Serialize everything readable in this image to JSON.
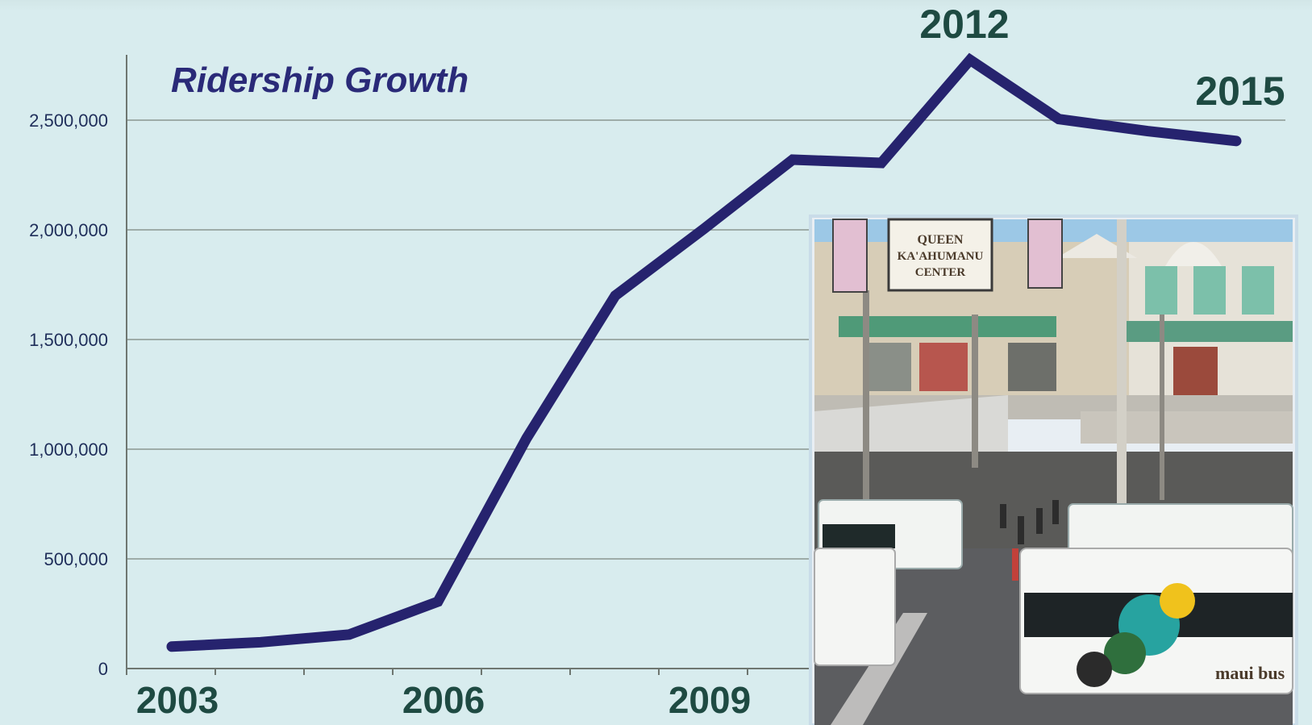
{
  "chart_data": {
    "type": "line",
    "title": "Ridership Growth",
    "x": [
      2003,
      2004,
      2005,
      2006,
      2007,
      2008,
      2009,
      2010,
      2011,
      2012,
      2013,
      2014,
      2015
    ],
    "series": [
      {
        "values": [
          100000,
          120000,
          155000,
          305000,
          1050000,
          1700000,
          2005000,
          2320000,
          2305000,
          2775000,
          2505000,
          2450000,
          2405000
        ]
      }
    ],
    "x_tick_labels": [
      "2003",
      "2006",
      "2009"
    ],
    "y_tick_labels": [
      "0",
      "500,000",
      "1,000,000",
      "1,500,000",
      "2,000,000",
      "2,500,000"
    ],
    "y_ticks": [
      0,
      500000,
      1000000,
      1500000,
      2000000,
      2500000
    ],
    "ylim": [
      0,
      2500000
    ],
    "point_labels": [
      {
        "x": 2012,
        "text": "2012"
      },
      {
        "x": 2015,
        "text": "2015"
      }
    ],
    "grid": "horizontal",
    "line_color": "#26236e",
    "grid_color": "#8a9690"
  },
  "photo": {
    "sign_text": "QUEEN KA'AHUMANU CENTER",
    "bus_text": "maui bus"
  }
}
